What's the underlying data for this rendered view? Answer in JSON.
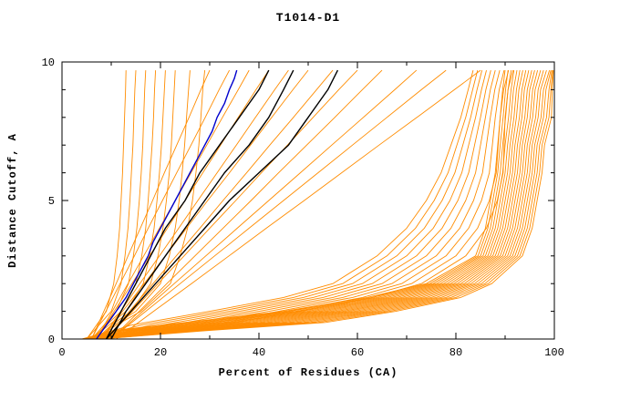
{
  "chart_data": {
    "type": "line",
    "title": "T1014-D1",
    "xlabel": "Percent of Residues (CA)",
    "ylabel": "Distance Cutoff, A",
    "xlim": [
      0,
      100
    ],
    "ylim": [
      0,
      10
    ],
    "x_major_ticks": [
      0,
      20,
      40,
      60,
      80,
      100
    ],
    "x_minor_step": 10,
    "y_major_ticks": [
      0,
      5,
      10
    ],
    "y_minor_step": 1,
    "grid": false,
    "legend": "none",
    "colors": {
      "models": "#ff8c00",
      "highlight_blue": "#0000cd",
      "highlight_black": "#000000",
      "axis": "#000000"
    },
    "series_groups": [
      {
        "name": "model-curve-right-bundle",
        "color": "#ff8c00",
        "width": 0.9,
        "y": [
          0,
          0.3,
          0.6,
          1,
          1.5,
          2,
          3,
          4,
          5,
          6,
          7,
          8,
          9,
          9.7
        ],
        "curves": [
          [
            4,
            10,
            25,
            45,
            62,
            74,
            84,
            86,
            87,
            88,
            88.5,
            89,
            89.5,
            90
          ],
          [
            4.2,
            11,
            26.5,
            46.2,
            63,
            74.7,
            84.5,
            86.5,
            87.5,
            88.5,
            89,
            89.6,
            90.1,
            90.6
          ],
          [
            4.4,
            12,
            28,
            47.4,
            64,
            75.4,
            85,
            87,
            88,
            89,
            89.5,
            90.1,
            90.6,
            91.2
          ],
          [
            4.6,
            13,
            29.5,
            48.6,
            65,
            76.1,
            85.5,
            87.5,
            88.5,
            89.5,
            90,
            90.7,
            91.2,
            91.8
          ],
          [
            4.8,
            14,
            31,
            49.8,
            66,
            76.8,
            86,
            88,
            89,
            90,
            90.5,
            91.2,
            91.7,
            92.4
          ],
          [
            5,
            15,
            32.5,
            51,
            67,
            77.5,
            86.5,
            88.5,
            89.5,
            90.5,
            91,
            91.8,
            92.3,
            93
          ],
          [
            5.2,
            16,
            34,
            52.2,
            68,
            78.2,
            87,
            89,
            90,
            91,
            91.5,
            92.3,
            92.8,
            93.6
          ],
          [
            5.4,
            17,
            35.5,
            53.4,
            69,
            78.9,
            87.5,
            89.5,
            90.5,
            91.5,
            92,
            92.9,
            93.4,
            94.2
          ],
          [
            5.6,
            18,
            37,
            54.6,
            70,
            79.6,
            88,
            90,
            91,
            92,
            92.5,
            93.4,
            93.9,
            94.8
          ],
          [
            5.8,
            19,
            38.5,
            55.8,
            71,
            80.3,
            88.5,
            90.5,
            91.5,
            92.5,
            93,
            94,
            94.5,
            95.4
          ],
          [
            6,
            20,
            40,
            57,
            72,
            81,
            89,
            91,
            92,
            93,
            93.5,
            94.5,
            95,
            96
          ],
          [
            6.2,
            21,
            41.5,
            58.2,
            73,
            81.7,
            89.5,
            91.5,
            92.5,
            93.5,
            94,
            95.1,
            95.6,
            96.6
          ],
          [
            6.4,
            22,
            43,
            59.4,
            74,
            82.4,
            90,
            92,
            93,
            94,
            94.5,
            95.6,
            96.1,
            97.2
          ],
          [
            6.6,
            23,
            44.5,
            60.6,
            75,
            83.1,
            90.5,
            92.5,
            93.5,
            94.5,
            95,
            96.2,
            96.7,
            97.8
          ],
          [
            6.8,
            24,
            46,
            61.8,
            76,
            83.8,
            91,
            93,
            94,
            95,
            95.5,
            96.7,
            97.2,
            98.4
          ],
          [
            7,
            25,
            47.5,
            63,
            77,
            84.5,
            91.5,
            93.5,
            94.5,
            95.5,
            96,
            97.3,
            97.8,
            99
          ],
          [
            7.2,
            26,
            49,
            64.2,
            78,
            85.2,
            92,
            94,
            95,
            96,
            96.5,
            97.8,
            98.3,
            99.3
          ],
          [
            7.4,
            27,
            50.5,
            65.4,
            79,
            85.9,
            92.5,
            94.5,
            95.5,
            96.5,
            97,
            98.4,
            98.9,
            99.5
          ],
          [
            7.6,
            28,
            52,
            66.6,
            80,
            86.6,
            93,
            95,
            96,
            97,
            97.5,
            98.9,
            99.3,
            99.7
          ],
          [
            7.8,
            29,
            53.5,
            67.8,
            81,
            87.3,
            93.5,
            95.5,
            96.5,
            97.5,
            98,
            99.4,
            99.6,
            99.8
          ]
        ]
      },
      {
        "name": "model-curve-lower-band",
        "color": "#ff8c00",
        "width": 0.9,
        "y": [
          0,
          0.5,
          1,
          1.5,
          2,
          3,
          4,
          5,
          6,
          7,
          8,
          9,
          9.7
        ],
        "curves": [
          [
            5,
            14,
            30,
            45,
            55,
            64,
            70,
            74,
            77,
            79,
            81,
            82.5,
            83.5
          ],
          [
            5.3,
            16,
            32,
            47,
            57,
            66,
            71.8,
            75.6,
            78.4,
            80.2,
            82,
            83.4,
            84.4
          ],
          [
            5.6,
            18,
            34,
            49,
            59,
            68,
            73.6,
            77.2,
            79.8,
            81.4,
            83,
            84.3,
            85.3
          ],
          [
            5.9,
            20,
            36,
            51,
            61,
            70,
            75.4,
            78.8,
            81.2,
            82.6,
            84,
            85.2,
            86.2
          ],
          [
            6.2,
            22,
            38,
            53,
            63,
            72,
            77.2,
            80.4,
            82.6,
            83.8,
            85,
            86.1,
            87.1
          ],
          [
            6.5,
            24,
            40,
            55,
            65,
            74,
            79,
            82,
            84,
            85,
            86,
            87,
            88
          ],
          [
            6.8,
            26,
            42,
            57,
            67,
            76,
            80.8,
            83.6,
            85.4,
            86.2,
            87,
            87.9,
            88.9
          ],
          [
            7.1,
            28,
            44,
            59,
            69,
            78,
            82.6,
            85.2,
            86.8,
            87.4,
            88,
            88.8,
            89.8
          ],
          [
            7.4,
            30,
            46,
            61,
            71,
            80,
            84.4,
            86.8,
            88.2,
            88.6,
            89,
            89.7,
            90.7
          ],
          [
            7.7,
            32,
            48,
            63,
            73,
            82,
            86.2,
            88.4,
            89.6,
            89.8,
            90,
            90.6,
            91.6
          ]
        ]
      },
      {
        "name": "model-curve-mid-spread",
        "color": "#ff8c00",
        "width": 0.9,
        "y": [
          0,
          1,
          2,
          3,
          4,
          5,
          6,
          7,
          8,
          9,
          9.7
        ],
        "curves": [
          [
            6,
            8.5,
            11,
            13.4,
            15.9,
            18.4,
            20.8,
            23.3,
            25.8,
            28.2,
            30
          ],
          [
            6,
            8.9,
            11.8,
            14.7,
            17.5,
            20.4,
            23.3,
            26.2,
            29.1,
            31.9,
            34
          ],
          [
            7,
            10.2,
            13.4,
            16.6,
            19.8,
            23,
            26.2,
            29.4,
            32.6,
            35.8,
            38
          ],
          [
            7,
            10.6,
            14.2,
            17.8,
            21.4,
            25,
            28.6,
            32.2,
            35.8,
            39.4,
            42
          ],
          [
            8,
            11.9,
            15.8,
            19.8,
            23.7,
            27.6,
            31.5,
            35.4,
            39.3,
            43.2,
            46
          ],
          [
            8,
            12.3,
            16.7,
            21,
            25.3,
            29.6,
            34,
            38.3,
            42.6,
            46.9,
            50
          ],
          [
            9,
            13.7,
            18.5,
            23.2,
            28,
            32.7,
            37.5,
            42.2,
            47,
            51.7,
            55
          ],
          [
            9,
            14.3,
            19.5,
            24.8,
            30,
            35.3,
            40.5,
            45.8,
            51,
            56.2,
            60
          ],
          [
            10,
            15.7,
            21.3,
            27,
            32.7,
            38.4,
            44,
            49.7,
            55.4,
            61,
            65
          ],
          [
            10,
            16.4,
            22.8,
            29.2,
            35.6,
            42,
            48.4,
            54.8,
            61.2,
            67.6,
            72
          ],
          [
            10,
            17,
            24,
            31,
            38,
            45,
            52,
            59,
            66,
            73,
            78
          ],
          [
            11,
            18.6,
            26.3,
            33.9,
            41.5,
            49.2,
            56.8,
            64.4,
            72.1,
            79.7,
            85
          ]
        ]
      },
      {
        "name": "model-curve-left-steep",
        "color": "#ff8c00",
        "width": 0.9,
        "y": [
          0,
          0.5,
          1,
          2,
          3,
          4,
          5,
          6,
          7,
          8,
          9,
          9.7
        ],
        "curves": [
          [
            5,
            7,
            9,
            10.5,
            11.2,
            11.7,
            12,
            12.3,
            12.5,
            12.7,
            12.9,
            13
          ],
          [
            5,
            7.5,
            10,
            12,
            12.8,
            13.4,
            13.8,
            14.1,
            14.4,
            14.6,
            14.8,
            15
          ],
          [
            6,
            8.5,
            11,
            13.5,
            14.5,
            15.2,
            15.7,
            16.1,
            16.4,
            16.6,
            16.8,
            17
          ],
          [
            6,
            9,
            12,
            15,
            16.2,
            17,
            17.5,
            17.9,
            18.3,
            18.6,
            18.8,
            19
          ],
          [
            6,
            9.5,
            13,
            16.5,
            17.8,
            18.7,
            19.3,
            19.8,
            20.2,
            20.5,
            20.8,
            21
          ],
          [
            7,
            10,
            14,
            18,
            19.5,
            20.5,
            21.2,
            21.8,
            22.2,
            22.5,
            22.8,
            23
          ],
          [
            7,
            10.5,
            15,
            20,
            21.8,
            23,
            23.8,
            24.4,
            24.9,
            25.3,
            25.7,
            26
          ],
          [
            7,
            11,
            16,
            22,
            24,
            25.5,
            26.5,
            27.2,
            27.8,
            28.2,
            28.6,
            29
          ]
        ]
      },
      {
        "name": "highlight-curve-blue",
        "color": "#0000cd",
        "width": 1.4,
        "y": [
          0,
          0.5,
          1,
          1.5,
          2,
          2.5,
          3,
          3.5,
          4,
          4.5,
          5,
          5.5,
          6,
          6.5,
          7,
          7.5,
          8,
          8.5,
          9,
          9.4,
          9.7
        ],
        "curves": [
          [
            7,
            9,
            11,
            13,
            14.5,
            16,
            17.5,
            18.5,
            20,
            21.5,
            23,
            24.5,
            26,
            27.5,
            29,
            30.5,
            31.5,
            33,
            34,
            35,
            35.5
          ]
        ]
      },
      {
        "name": "highlight-curve-black",
        "color": "#000000",
        "width": 1.4,
        "y": [
          0,
          1,
          2,
          3,
          4,
          5,
          6,
          7,
          8,
          9,
          9.7
        ],
        "curves": [
          [
            9,
            12,
            15,
            18,
            21,
            25,
            28,
            32,
            36,
            40,
            42
          ],
          [
            10,
            13,
            17,
            21,
            25,
            29,
            33,
            38,
            42,
            45,
            47
          ],
          [
            9,
            14,
            19,
            24,
            29,
            34,
            40,
            46,
            50,
            54,
            56
          ]
        ]
      }
    ]
  }
}
